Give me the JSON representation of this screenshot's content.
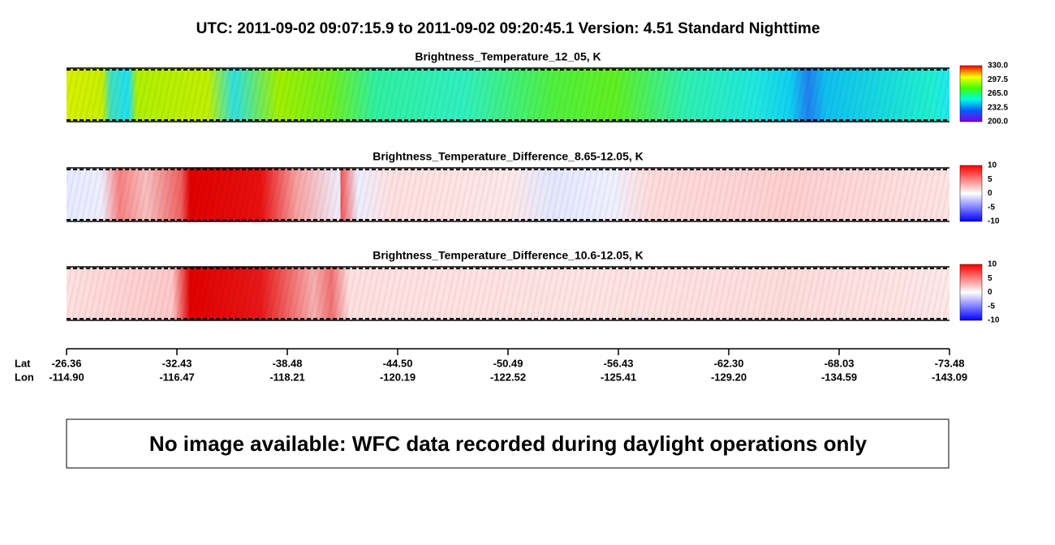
{
  "header": {
    "title": "UTC:  2011-09-02   09:07:15.9  to  2011-09-02   09:20:45.1    Version: 4.51  Standard Nighttime"
  },
  "panels": [
    {
      "title": "Brightness_Temperature_12_05, K",
      "colorbar_ticks": [
        "330.0",
        "297.5",
        "265.0",
        "232.5",
        "200.0"
      ]
    },
    {
      "title": "Brightness_Temperature_Difference_8.65-12.05, K",
      "colorbar_ticks": [
        "10",
        "5",
        "0",
        "-5",
        "-10"
      ]
    },
    {
      "title": "Brightness_Temperature_Difference_10.6-12.05, K",
      "colorbar_ticks": [
        "10",
        "5",
        "0",
        "-5",
        "-10"
      ]
    }
  ],
  "axis": {
    "lat_label": "Lat",
    "lon_label": "Lon",
    "lat": [
      "-26.36",
      "-32.43",
      "-38.48",
      "-44.50",
      "-50.49",
      "-56.43",
      "-62.30",
      "-68.03",
      "-73.48"
    ],
    "lon": [
      "-114.90",
      "-116.47",
      "-118.21",
      "-120.19",
      "-122.52",
      "-125.41",
      "-129.20",
      "-134.59",
      "-143.09"
    ]
  },
  "notice": "No image available: WFC data recorded during daylight operations only"
}
